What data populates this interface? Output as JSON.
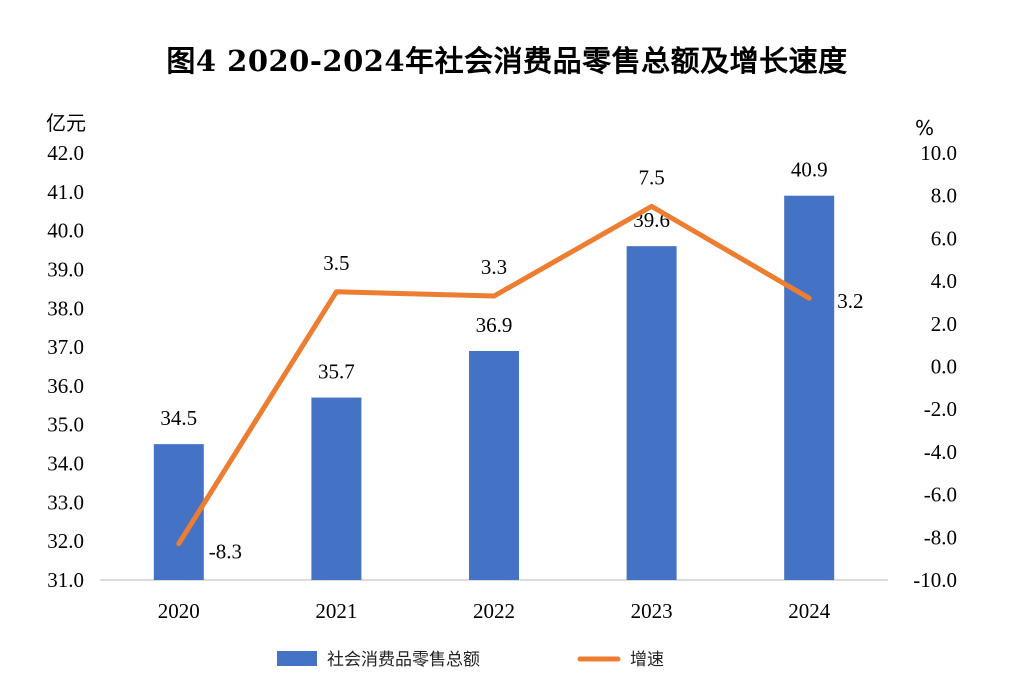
{
  "chart_data": {
    "type": "bar+line",
    "title": "图4 2020-2024年社会消费品零售总额及增长速度",
    "categories": [
      "2020",
      "2021",
      "2022",
      "2023",
      "2024"
    ],
    "series": [
      {
        "name": "社会消费品零售总额",
        "type": "bar",
        "axis": "left",
        "color": "#4472C4",
        "values": [
          34.5,
          35.7,
          36.9,
          39.6,
          40.9
        ],
        "labels": [
          "34.5",
          "35.7",
          "36.9",
          "39.6",
          "40.9"
        ]
      },
      {
        "name": "增速",
        "type": "line",
        "axis": "right",
        "color": "#ED7D31",
        "values": [
          -8.3,
          3.5,
          3.3,
          7.5,
          3.2
        ],
        "labels": [
          "-8.3",
          "3.5",
          "3.3",
          "7.5",
          "3.2"
        ]
      }
    ],
    "y_left": {
      "unit": "亿元",
      "ylim": [
        31,
        42
      ],
      "ticks": [
        "31.0",
        "32.0",
        "33.0",
        "34.0",
        "35.0",
        "36.0",
        "37.0",
        "38.0",
        "39.0",
        "40.0",
        "41.0",
        "42.0"
      ]
    },
    "y_right": {
      "unit": "%",
      "ylim": [
        -10,
        10
      ],
      "ticks": [
        "-10.0",
        "-8.0",
        "-6.0",
        "-4.0",
        "-2.0",
        "0.0",
        "2.0",
        "4.0",
        "6.0",
        "8.0",
        "10.0"
      ]
    },
    "grid": false,
    "legend_position": "bottom"
  }
}
